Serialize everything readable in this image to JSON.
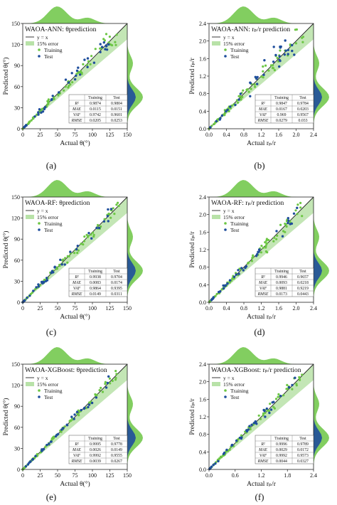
{
  "labels": {
    "legend_line": "y = x",
    "legend_band": "15% error",
    "legend_train": "Training",
    "legend_test": "Test",
    "metrics": [
      "R²",
      "MAE",
      "VAF",
      "RMSE"
    ],
    "col_train": "Training",
    "col_test": "Test"
  },
  "colors": {
    "training": "#6cc644",
    "test": "#1f4e9c",
    "band": "#b8e2a8",
    "diag": "#222222"
  },
  "chart_data": [
    {
      "type": "scatter",
      "panel": "(a)",
      "title": "WAOA-ANN: θprediction",
      "xlabel": "Actual θ(°)",
      "ylabel": "Predicted θ(°)",
      "xlim": [
        0,
        150
      ],
      "ylim": [
        0,
        150
      ],
      "xticks": [
        "0",
        "25",
        "50",
        "75",
        "100",
        "125",
        "150"
      ],
      "yticks": [
        "0",
        "30",
        "60",
        "90",
        "120",
        "150"
      ],
      "metrics": {
        "training": [
          "0.9874",
          "0.0115",
          "0.9742",
          "0.0205"
        ],
        "test": [
          "0.9804",
          "0.0151",
          "0.9601",
          "0.0253"
        ]
      }
    },
    {
      "type": "scatter",
      "panel": "(b)",
      "title": "WAOA-ANN: rₚ/r prediction",
      "xlabel": "Actual rₚ/r",
      "ylabel": "Predicted rₚ/r",
      "xlim": [
        0,
        2.4
      ],
      "ylim": [
        0,
        2.4
      ],
      "xticks": [
        "0.0",
        "0.4",
        "0.8",
        "1.2",
        "1.6",
        "2.0",
        "2.4"
      ],
      "yticks": [
        "0.0",
        "0.4",
        "0.8",
        "1.2",
        "1.6",
        "2.0",
        "2.4"
      ],
      "metrics": {
        "training": [
          "0.9847",
          "0.0167",
          "0.969",
          "0.0279"
        ],
        "test": [
          "0.9784",
          "0.0203",
          "0.9567",
          "0.033"
        ]
      }
    },
    {
      "type": "scatter",
      "panel": "(c)",
      "title": "WAOA-RF: θprediction",
      "xlabel": "Actual θ(°)",
      "ylabel": "Predicted θ(°)",
      "xlim": [
        0,
        150
      ],
      "ylim": [
        0,
        150
      ],
      "xticks": [
        "0",
        "25",
        "50",
        "75",
        "100",
        "125",
        "150"
      ],
      "yticks": [
        "0",
        "30",
        "60",
        "90",
        "120",
        "150"
      ],
      "metrics": {
        "training": [
          "0.9938",
          "0.0083",
          "0.9864",
          "0.0149"
        ],
        "test": [
          "0.9704",
          "0.0174",
          "0.9395",
          "0.0311"
        ]
      }
    },
    {
      "type": "scatter",
      "panel": "(d)",
      "title": "WAOA-RF: rₚ/r prediction",
      "xlabel": "Actual rₚ/r",
      "ylabel": "Predicted rₚ/r",
      "xlim": [
        0,
        2.4
      ],
      "ylim": [
        0,
        2.4
      ],
      "xticks": [
        "0.0",
        "0.4",
        "0.8",
        "1.2",
        "1.6",
        "2.0",
        "2.4"
      ],
      "yticks": [
        "0.0",
        "0.4",
        "0.8",
        "1.2",
        "1.6",
        "2.0",
        "2.4"
      ],
      "metrics": {
        "training": [
          "0.9946",
          "0.0093",
          "0.9881",
          "0.0173"
        ],
        "test": [
          "0.9657",
          "0.0218",
          "0.9219",
          "0.0443"
        ]
      }
    },
    {
      "type": "scatter",
      "panel": "(e)",
      "title": "WAOA-XGBoost: θprediction",
      "xlabel": "Actual θ(°)",
      "ylabel": "Predicted θ(°)",
      "xlim": [
        0,
        150
      ],
      "ylim": [
        0,
        150
      ],
      "xticks": [
        "0",
        "25",
        "50",
        "75",
        "100",
        "125",
        "150"
      ],
      "yticks": [
        "0",
        "30",
        "60",
        "90",
        "120",
        "150"
      ],
      "metrics": {
        "training": [
          "0.9995",
          "0.0026",
          "0.9992",
          "0.0039"
        ],
        "test": [
          "0.9778",
          "0.0149",
          "0.9555",
          "0.0267"
        ]
      }
    },
    {
      "type": "scatter",
      "panel": "(f)",
      "title": "WAOA-XGBoost: rₚ/r prediction",
      "xlabel": "Actual rₚ/r",
      "ylabel": "Predicted rₚ/r",
      "xlim": [
        0,
        2.4
      ],
      "ylim": [
        0,
        2.4
      ],
      "xticks": [
        "0.0",
        "0.6",
        "1.2",
        "1.8",
        "2.4"
      ],
      "yticks": [
        "0.0",
        "0.4",
        "0.8",
        "1.2",
        "1.6",
        "2.0",
        "2.4"
      ],
      "metrics": {
        "training": [
          "0.9996",
          "0.0029",
          "0.9992",
          "0.0044"
        ],
        "test": [
          "0.9789",
          "0.0172",
          "0.9573",
          "0.0327"
        ]
      }
    }
  ]
}
